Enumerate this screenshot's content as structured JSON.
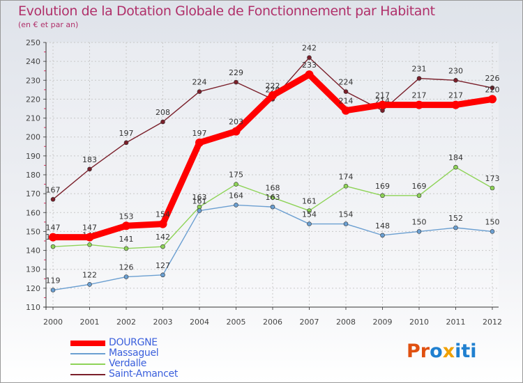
{
  "header": {
    "title": "Evolution de la Dotation Globale de Fonctionnement par Habitant",
    "subtitle": "(en € et par an)"
  },
  "branding": {
    "logo_text": "Proxiti",
    "logo_colors": [
      "#e05010",
      "#e05010",
      "#2080d0",
      "#f0a000",
      "#2080d0",
      "#2080d0",
      "#2080d0"
    ]
  },
  "chart_data": {
    "type": "line",
    "title": "Evolution de la Dotation Globale de Fonctionnement par Habitant",
    "subtitle": "(en € et par an)",
    "xlabel": "",
    "ylabel": "",
    "categories": [
      "2000",
      "2001",
      "2002",
      "2003",
      "2004",
      "2005",
      "2006",
      "2007",
      "2008",
      "2009",
      "2010",
      "2011",
      "2012"
    ],
    "ylim": [
      110,
      250
    ],
    "yticks": [
      110,
      120,
      130,
      140,
      150,
      160,
      170,
      180,
      190,
      200,
      210,
      220,
      230,
      240,
      250
    ],
    "grid": true,
    "legend_position": "bottom-left",
    "series": [
      {
        "name": "Saint-Amancet",
        "color": "#7a1f2a",
        "emphasis": false,
        "values": [
          167,
          183,
          197,
          208,
          224,
          229,
          220,
          242,
          224,
          214,
          231,
          230,
          226
        ],
        "labels": [
          "167",
          "183",
          "197",
          "208",
          "224",
          "229",
          "220",
          "242",
          "224",
          "214",
          "231",
          "230",
          "226"
        ]
      },
      {
        "name": "Verdalle",
        "color": "#8ed357",
        "emphasis": false,
        "values": [
          142,
          143,
          141,
          142,
          163,
          175,
          168,
          161,
          174,
          169,
          169,
          184,
          173
        ],
        "labels": [
          "142",
          "143",
          "141",
          "142",
          "163",
          "175",
          "168",
          "161",
          "174",
          "169",
          "169",
          "184",
          "173"
        ]
      },
      {
        "name": "Massaguel",
        "color": "#6b9fd1",
        "emphasis": false,
        "values": [
          119,
          122,
          126,
          127,
          161,
          164,
          163,
          154,
          154,
          148,
          150,
          152,
          150
        ],
        "labels": [
          "119",
          "122",
          "126",
          "127",
          "161",
          "164",
          "163",
          "154",
          "154",
          "148",
          "150",
          "152",
          "150"
        ]
      },
      {
        "name": "DOURGNE",
        "color": "#ff0000",
        "emphasis": true,
        "values": [
          147,
          147,
          153,
          154,
          197,
          203,
          222,
          233,
          214,
          217,
          217,
          217,
          220
        ],
        "labels": [
          "147",
          "147",
          "153",
          "154",
          "197",
          "203",
          "222",
          "233",
          "214",
          "217",
          "217",
          "217",
          "220"
        ]
      }
    ],
    "legend": [
      "DOURGNE",
      "Massaguel",
      "Verdalle",
      "Saint-Amancet"
    ]
  }
}
